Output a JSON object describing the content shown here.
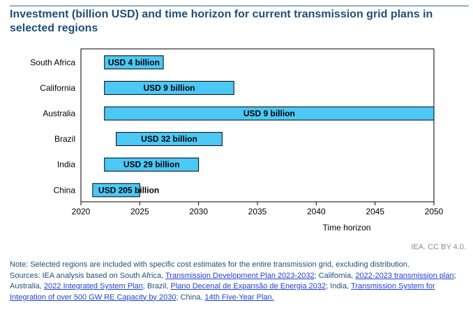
{
  "header": {
    "title": "Investment (billion USD) and time horizon for current transmission grid plans in selected regions"
  },
  "chart_data": {
    "type": "bar",
    "orientation": "horizontal-range",
    "title": "Investment (billion USD) and time horizon for current transmission grid plans in selected regions",
    "xlabel": "Time horizon",
    "ylabel": "",
    "xlim": [
      2020,
      2050
    ],
    "xticks": [
      2020,
      2025,
      2030,
      2035,
      2040,
      2045,
      2050
    ],
    "grid": false,
    "bar_color": "#4cc8f4",
    "rows": [
      {
        "region": "South Africa",
        "start": 2022,
        "end": 2027,
        "label": "USD 4 billion"
      },
      {
        "region": "California",
        "start": 2022,
        "end": 2033,
        "label": "USD 9 billion"
      },
      {
        "region": "Australia",
        "start": 2022,
        "end": 2050,
        "label": "USD 9 billion"
      },
      {
        "region": "Brazil",
        "start": 2023,
        "end": 2032,
        "label": "USD 32 billion"
      },
      {
        "region": "India",
        "start": 2022,
        "end": 2030,
        "label": "USD 29 billion"
      },
      {
        "region": "China",
        "start": 2021,
        "end": 2025,
        "label": "USD 205 billion"
      }
    ]
  },
  "footer": {
    "credit": "IEA. CC BY 4.0.",
    "note": "Note: Selected regions are included with specific cost estimates for the entire transmission grid, excluding distribution.",
    "sources_prefix": "Sources: IEA analysis based on South Africa, ",
    "src1": "Transmission Development Plan 2023-2032",
    "sep1": "; California, ",
    "src2": "2022-2023 transmission plan",
    "sep2": "; Australia, ",
    "src3": "2022 Integrated System Plan",
    "sep3": "; Brazil, ",
    "src4": "Plano Decenal de Expansão de Energia 2032",
    "sep4": "; India, ",
    "src5": "Transmission System for Integration of over 500 GW RE Capacity by 2030",
    "sep5": "; China, ",
    "src6": "14th Five-Year Plan."
  }
}
